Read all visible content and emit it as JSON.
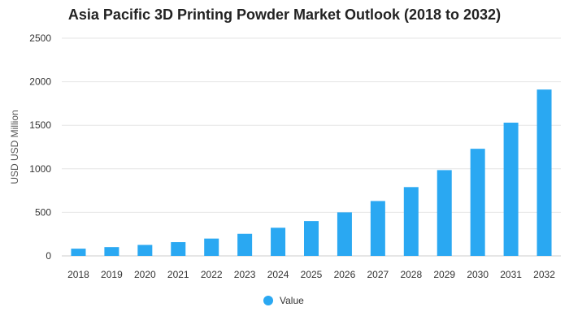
{
  "chart_data": {
    "type": "bar",
    "title": "Asia Pacific 3D Printing Powder Market Outlook (2018 to 2032)",
    "xlabel": "",
    "ylabel": "USD USD Million",
    "ylim": [
      0,
      2500
    ],
    "yticks": [
      0,
      500,
      1000,
      1500,
      2000,
      2500
    ],
    "grid": true,
    "legend_position": "bottom",
    "categories": [
      "2018",
      "2019",
      "2020",
      "2021",
      "2022",
      "2023",
      "2024",
      "2025",
      "2026",
      "2027",
      "2028",
      "2029",
      "2030",
      "2031",
      "2032"
    ],
    "series": [
      {
        "name": "Value",
        "color": "#2aa8f2",
        "values": [
          83,
          101,
          126,
          158,
          199,
          254,
          323,
          400,
          500,
          630,
          790,
          985,
          1230,
          1530,
          1910
        ]
      }
    ]
  }
}
